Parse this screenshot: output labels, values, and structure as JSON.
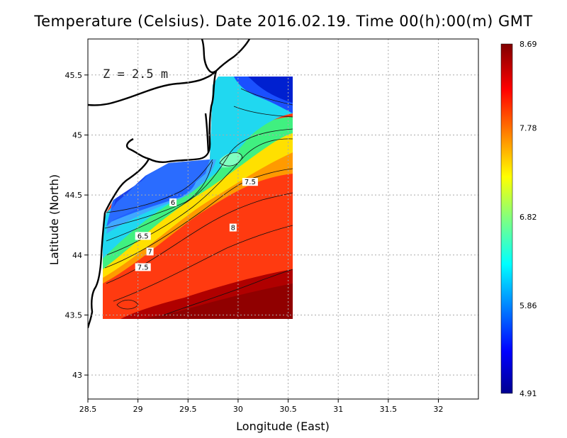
{
  "title": "Temperature (Celsius). Date 2016.02.19. Time 00(h):00(m)  GMT",
  "depth_label": "Z  =  2.5  m",
  "chart_data": {
    "type": "heatmap",
    "variable": "Temperature",
    "units": "Celsius",
    "date": "2016.02.19",
    "time": "00(h):00(m) GMT",
    "depth": "2.5 m",
    "xlabel": "Longitude (East)",
    "ylabel": "Latitude (North)",
    "xlim": [
      28.5,
      32.4
    ],
    "ylim": [
      42.8,
      45.8
    ],
    "x_ticks": [
      "28.5",
      "29",
      "29.5",
      "30",
      "30.5",
      "31",
      "31.5",
      "32"
    ],
    "y_ticks": [
      "43",
      "43.5",
      "44",
      "44.5",
      "45",
      "45.5"
    ],
    "grid": true,
    "data_extent": {
      "lon": [
        28.65,
        30.53
      ],
      "lat": [
        43.49,
        45.5
      ]
    },
    "colorbar": {
      "min": 4.91,
      "max": 8.69,
      "tick_labels": [
        "8.69",
        "7.78",
        "6.82",
        "5.86",
        "4.91"
      ],
      "tick_values": [
        8.69,
        7.78,
        6.82,
        5.86,
        4.91
      ]
    },
    "contour_labels": [
      {
        "text": "6",
        "lon": 29.35,
        "lat": 44.43
      },
      {
        "text": "6.5",
        "lon": 29.05,
        "lat": 44.15
      },
      {
        "text": "7",
        "lon": 29.12,
        "lat": 44.02
      },
      {
        "text": "7.5",
        "lon": 29.05,
        "lat": 43.89
      },
      {
        "text": "7.5",
        "lon": 30.12,
        "lat": 44.6
      },
      {
        "text": "8",
        "lon": 29.95,
        "lat": 44.22
      }
    ]
  }
}
